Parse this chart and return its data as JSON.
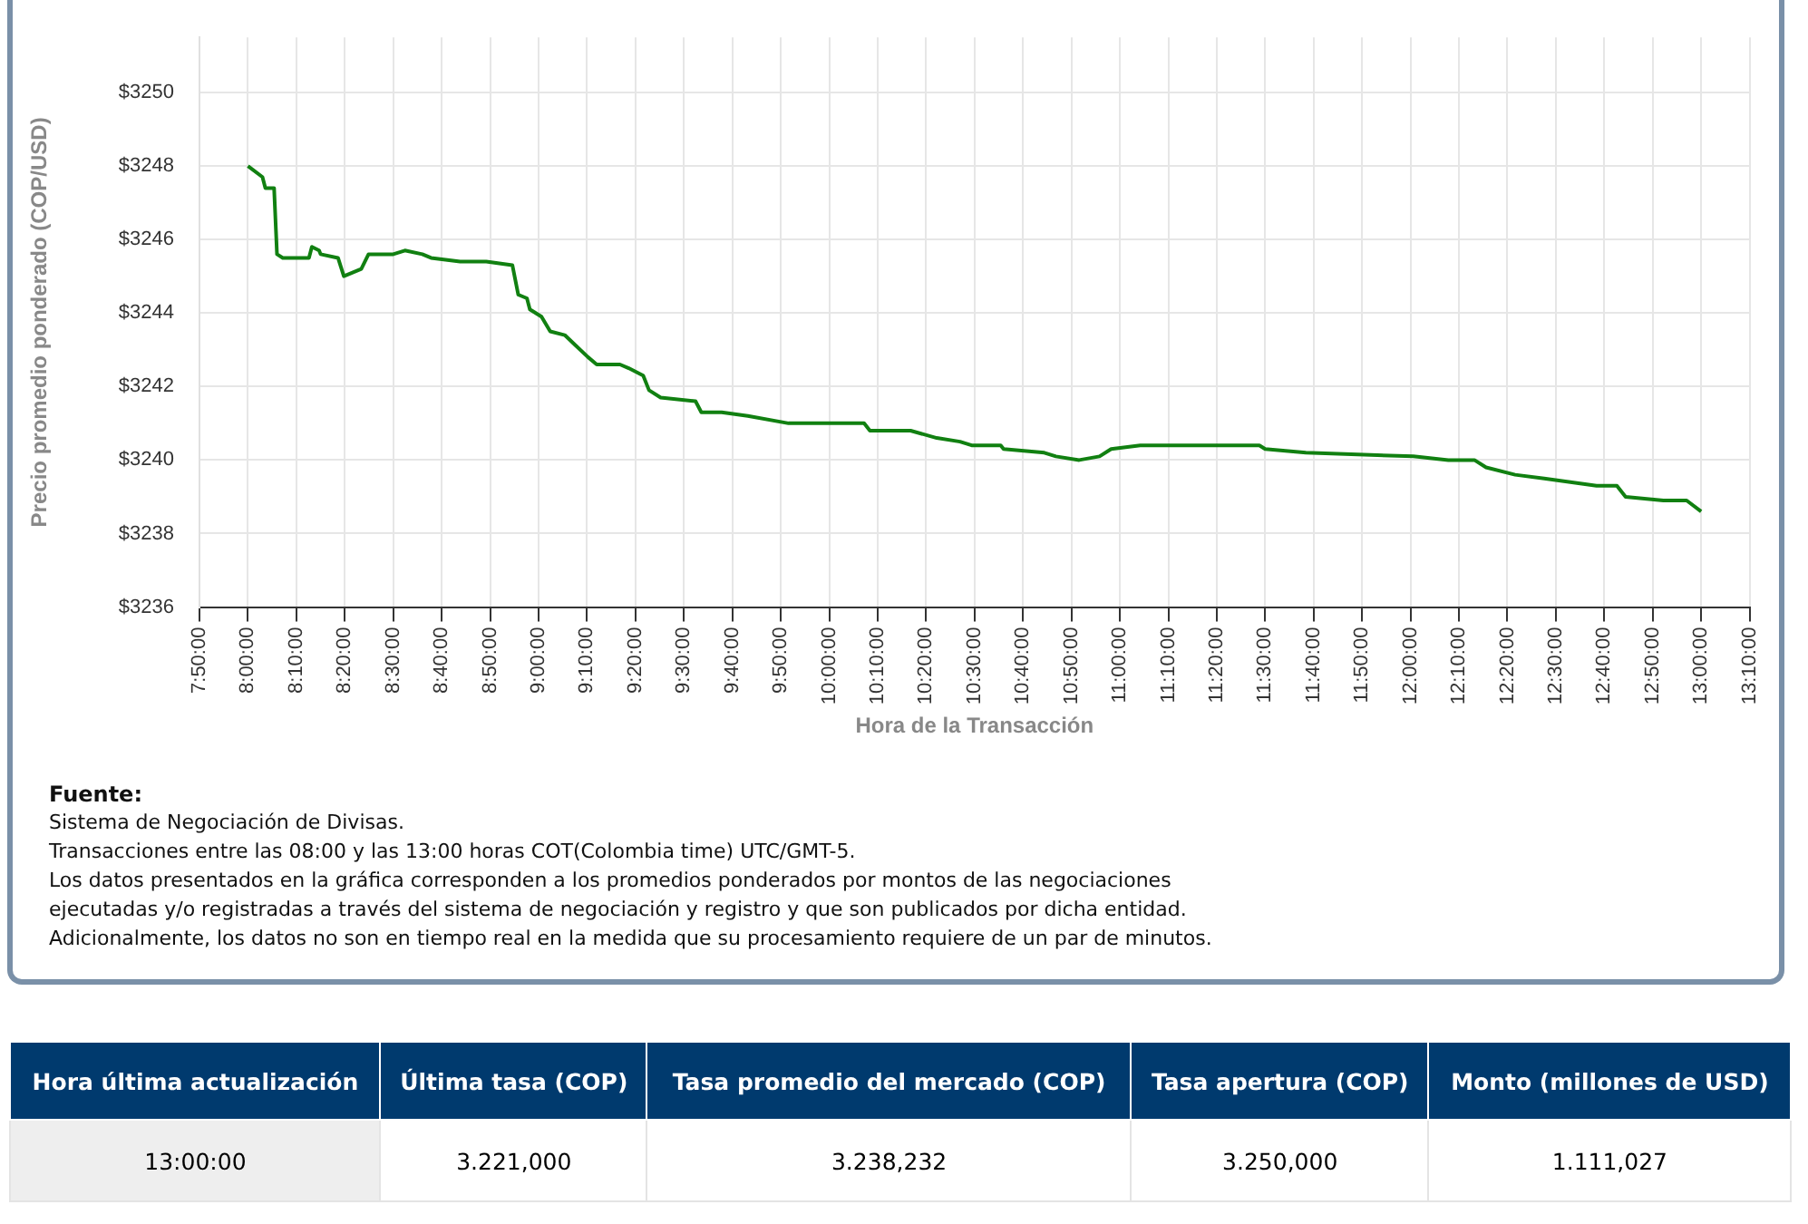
{
  "chart_data": [
    {
      "type": "line",
      "xlabel": "Hora de la Transacción",
      "ylabel": "Precio promedio ponderado (COP/USD)",
      "x": [
        8.0,
        8.05,
        8.06,
        8.09,
        8.1,
        8.12,
        8.21,
        8.22,
        8.245,
        8.25,
        8.31,
        8.33,
        8.36,
        8.39,
        8.415,
        8.5,
        8.54,
        8.6,
        8.63,
        8.73,
        8.75,
        8.82,
        8.91,
        8.93,
        8.96,
        8.97,
        9.01,
        9.04,
        9.09,
        9.13,
        9.17,
        9.2,
        9.28,
        9.31,
        9.36,
        9.38,
        9.42,
        9.54,
        9.56,
        9.63,
        9.72,
        9.86,
        10.12,
        10.14,
        10.28,
        10.37,
        10.45,
        10.49,
        10.59,
        10.6,
        10.74,
        10.78,
        10.86,
        10.93,
        10.97,
        11.07,
        11.25,
        11.48,
        11.5,
        11.64,
        12.01,
        12.13,
        12.22,
        12.26,
        12.36,
        12.46,
        12.64,
        12.71,
        12.74,
        12.87,
        12.95,
        13.0
      ],
      "values": [
        3248.0,
        3247.7,
        3247.4,
        3247.4,
        3245.6,
        3245.5,
        3245.5,
        3245.8,
        3245.7,
        3245.6,
        3245.5,
        3245.0,
        3245.1,
        3245.2,
        3245.6,
        3245.6,
        3245.7,
        3245.6,
        3245.5,
        3245.4,
        3245.4,
        3245.4,
        3245.3,
        3244.5,
        3244.4,
        3244.1,
        3243.9,
        3243.5,
        3243.4,
        3243.1,
        3242.8,
        3242.6,
        3242.6,
        3242.5,
        3242.3,
        3241.9,
        3241.7,
        3241.6,
        3241.3,
        3241.3,
        3241.2,
        3241.0,
        3241.0,
        3240.8,
        3240.8,
        3240.6,
        3240.5,
        3240.4,
        3240.4,
        3240.3,
        3240.2,
        3240.1,
        3240.0,
        3240.1,
        3240.3,
        3240.4,
        3240.4,
        3240.4,
        3240.3,
        3240.2,
        3240.1,
        3240.0,
        3240.0,
        3239.8,
        3239.6,
        3239.5,
        3239.3,
        3239.3,
        3239.0,
        3238.9,
        3238.9,
        3238.6
      ],
      "color": "#118011",
      "marker": "none",
      "grid": true,
      "xlim": [
        7.8333,
        13.1667
      ],
      "xticks": [
        {
          "value": 7.8333,
          "label": "7:50:00"
        },
        {
          "value": 8,
          "label": "8:00:00"
        },
        {
          "value": 8.1667,
          "label": "8:10:00"
        },
        {
          "value": 8.3333,
          "label": "8:20:00"
        },
        {
          "value": 8.5,
          "label": "8:30:00"
        },
        {
          "value": 8.6667,
          "label": "8:40:00"
        },
        {
          "value": 8.8333,
          "label": "8:50:00"
        },
        {
          "value": 9,
          "label": "9:00:00"
        },
        {
          "value": 9.1667,
          "label": "9:10:00"
        },
        {
          "value": 9.3333,
          "label": "9:20:00"
        },
        {
          "value": 9.5,
          "label": "9:30:00"
        },
        {
          "value": 9.6667,
          "label": "9:40:00"
        },
        {
          "value": 9.8333,
          "label": "9:50:00"
        },
        {
          "value": 10,
          "label": "10:00:00"
        },
        {
          "value": 10.1667,
          "label": "10:10:00"
        },
        {
          "value": 10.3333,
          "label": "10:20:00"
        },
        {
          "value": 10.5,
          "label": "10:30:00"
        },
        {
          "value": 10.6667,
          "label": "10:40:00"
        },
        {
          "value": 10.8333,
          "label": "10:50:00"
        },
        {
          "value": 11,
          "label": "11:00:00"
        },
        {
          "value": 11.1667,
          "label": "11:10:00"
        },
        {
          "value": 11.3333,
          "label": "11:20:00"
        },
        {
          "value": 11.5,
          "label": "11:30:00"
        },
        {
          "value": 11.6667,
          "label": "11:40:00"
        },
        {
          "value": 11.8333,
          "label": "11:50:00"
        },
        {
          "value": 12,
          "label": "12:00:00"
        },
        {
          "value": 12.1667,
          "label": "12:10:00"
        },
        {
          "value": 12.3333,
          "label": "12:20:00"
        },
        {
          "value": 12.5,
          "label": "12:30:00"
        },
        {
          "value": 12.6667,
          "label": "12:40:00"
        },
        {
          "value": 12.8333,
          "label": "12:50:00"
        },
        {
          "value": 13,
          "label": "13:00:00"
        },
        {
          "value": 13.1667,
          "label": "13:10:00"
        }
      ],
      "ylim": [
        3236,
        3251.5
      ],
      "yticks": [
        {
          "value": 3236,
          "label": "$3236"
        },
        {
          "value": 3238,
          "label": "$3238"
        },
        {
          "value": 3240,
          "label": "$3240"
        },
        {
          "value": 3242,
          "label": "$3242"
        },
        {
          "value": 3244,
          "label": "$3244"
        },
        {
          "value": 3246,
          "label": "$3246"
        },
        {
          "value": 3248,
          "label": "$3248"
        },
        {
          "value": 3250,
          "label": "$3250"
        }
      ],
      "annotations": [
        "Fuente:",
        "Sistema de Negociación de Divisas.",
        "Transacciones entre las 08:00 y las 13:00 horas COT(Colombia time) UTC/GMT-5.",
        "Los datos presentados en la gráfica corresponden a los promedios ponderados por montos de las negociaciones",
        "ejecutadas y/o registradas a través del sistema de negociación y registro y que son publicados por dicha entidad.",
        "Adicionalmente, los datos no son en tiempo real en la medida que su procesamiento requiere de un par de minutos."
      ]
    },
    {
      "type": "other",
      "categories": [
        "Hora última actualización",
        "Última tasa (COP)",
        "Tasa promedio del mercado (COP)",
        "Tasa apertura (COP)",
        "Monto (millones de USD)"
      ],
      "annotations": [
        "13:00:00",
        "3.221,000",
        "3.238,232",
        "3.250,000",
        "1.111,027"
      ]
    }
  ]
}
